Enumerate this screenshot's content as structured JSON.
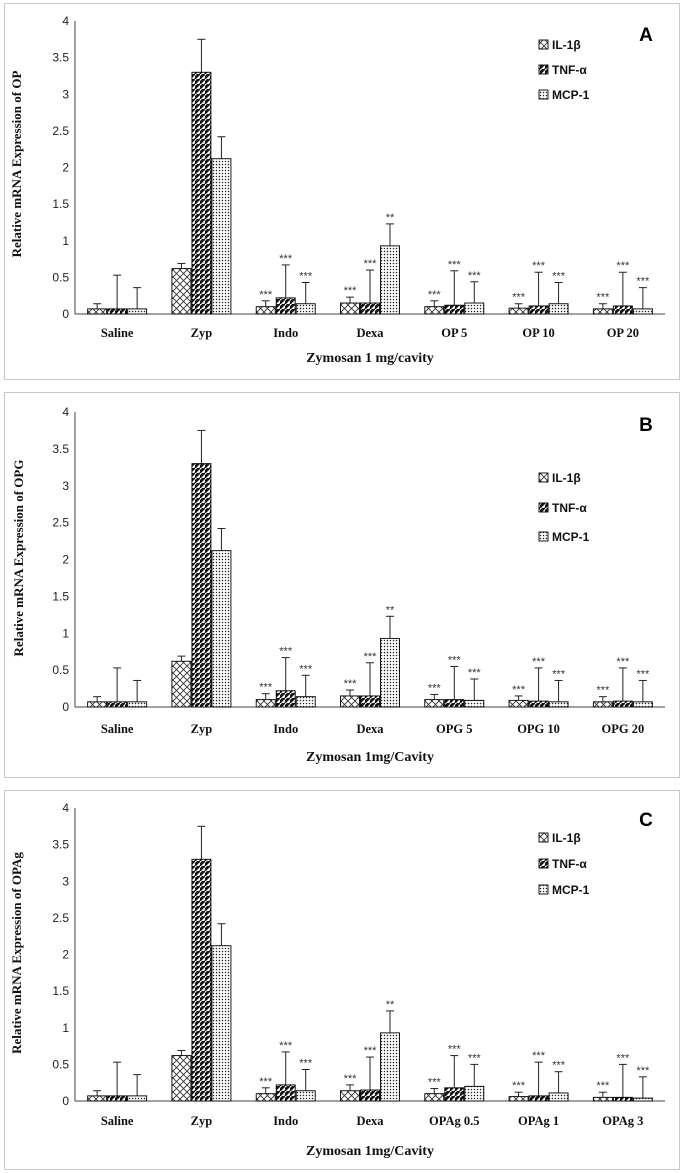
{
  "colors": {
    "bar_stroke": "#000000",
    "bar_fill": "#ffffff",
    "axis": "#444444",
    "error": "#222222"
  },
  "legend_patterns": [
    "crosshatch",
    "diagonal",
    "dots"
  ],
  "chart_data": [
    {
      "type": "bar",
      "panel_label": "A",
      "ylabel": "Relative mRNA Expression of OP",
      "xlabel": "Zymosan 1 mg/cavity",
      "ylim": [
        0,
        4
      ],
      "yticks": [
        "0",
        "0.5",
        "1",
        "1.5",
        "2",
        "2.5",
        "3",
        "3.5",
        "4"
      ],
      "categories": [
        "Saline",
        "Zyp",
        "Indo",
        "Dexa",
        "OP 5",
        "OP 10",
        "OP 20"
      ],
      "legend_position": "top-right",
      "series": [
        {
          "name": "IL-1β",
          "values": [
            0.07,
            0.62,
            0.1,
            0.15,
            0.1,
            0.08,
            0.07
          ],
          "errors": [
            0.07,
            0.07,
            0.08,
            0.08,
            0.08,
            0.06,
            0.07
          ],
          "annotations": [
            "",
            "",
            "***",
            "***",
            "***",
            "***",
            "***"
          ]
        },
        {
          "name": "TNF-α",
          "values": [
            0.07,
            3.3,
            0.22,
            0.15,
            0.12,
            0.11,
            0.11
          ],
          "errors": [
            0.46,
            0.45,
            0.45,
            0.45,
            0.47,
            0.46,
            0.46
          ],
          "annotations": [
            "",
            "",
            "***",
            "***",
            "***",
            "***",
            "***"
          ]
        },
        {
          "name": "MCP-1",
          "values": [
            0.07,
            2.12,
            0.14,
            0.93,
            0.15,
            0.14,
            0.07
          ],
          "errors": [
            0.29,
            0.3,
            0.29,
            0.3,
            0.29,
            0.29,
            0.29
          ],
          "annotations": [
            "",
            "",
            "***",
            "**",
            "***",
            "***",
            "***"
          ]
        }
      ]
    },
    {
      "type": "bar",
      "panel_label": "B",
      "ylabel": "Relative mRNA Expression of OPG",
      "xlabel": "Zymosan 1mg/Cavity",
      "ylim": [
        0,
        4
      ],
      "yticks": [
        "0",
        "0.5",
        "1",
        "1.5",
        "2",
        "2.5",
        "3",
        "3.5",
        "4"
      ],
      "categories": [
        "Saline",
        "Zyp",
        "Indo",
        "Dexa",
        "OPG 5",
        "OPG 10",
        "OPG 20"
      ],
      "legend_position": "top-right",
      "series": [
        {
          "name": "IL-1β",
          "values": [
            0.07,
            0.62,
            0.1,
            0.15,
            0.1,
            0.09,
            0.07
          ],
          "errors": [
            0.07,
            0.07,
            0.08,
            0.08,
            0.07,
            0.06,
            0.07
          ],
          "annotations": [
            "",
            "",
            "***",
            "***",
            "***",
            "***",
            "***"
          ]
        },
        {
          "name": "TNF-α",
          "values": [
            0.07,
            3.3,
            0.22,
            0.15,
            0.1,
            0.08,
            0.08
          ],
          "errors": [
            0.46,
            0.45,
            0.45,
            0.45,
            0.45,
            0.45,
            0.45
          ],
          "annotations": [
            "",
            "",
            "***",
            "***",
            "***",
            "***",
            "***"
          ]
        },
        {
          "name": "MCP-1",
          "values": [
            0.07,
            2.12,
            0.14,
            0.93,
            0.09,
            0.07,
            0.07
          ],
          "errors": [
            0.29,
            0.3,
            0.29,
            0.3,
            0.29,
            0.29,
            0.29
          ],
          "annotations": [
            "",
            "",
            "***",
            "**",
            "***",
            "***",
            "***"
          ]
        }
      ]
    },
    {
      "type": "bar",
      "panel_label": "C",
      "ylabel": "Relative mRNA Expression of OPAg",
      "xlabel": "Zymosan 1mg/Cavity",
      "ylim": [
        0,
        4
      ],
      "yticks": [
        "0",
        "0.5",
        "1",
        "1.5",
        "2",
        "2.5",
        "3",
        "3.5",
        "4"
      ],
      "categories": [
        "Saline",
        "Zyp",
        "Indo",
        "Dexa",
        "OPAg 0.5",
        "OPAg 1",
        "OPAg 3"
      ],
      "legend_position": "top-right",
      "series": [
        {
          "name": "IL-1β",
          "values": [
            0.07,
            0.62,
            0.1,
            0.14,
            0.1,
            0.06,
            0.05
          ],
          "errors": [
            0.07,
            0.07,
            0.08,
            0.08,
            0.07,
            0.06,
            0.07
          ],
          "annotations": [
            "",
            "",
            "***",
            "***",
            "***",
            "***",
            "***"
          ]
        },
        {
          "name": "TNF-α",
          "values": [
            0.07,
            3.3,
            0.22,
            0.15,
            0.18,
            0.07,
            0.05
          ],
          "errors": [
            0.46,
            0.45,
            0.45,
            0.45,
            0.44,
            0.46,
            0.45
          ],
          "annotations": [
            "",
            "",
            "***",
            "***",
            "***",
            "***",
            "***"
          ]
        },
        {
          "name": "MCP-1",
          "values": [
            0.07,
            2.12,
            0.14,
            0.93,
            0.2,
            0.11,
            0.04
          ],
          "errors": [
            0.29,
            0.3,
            0.29,
            0.3,
            0.3,
            0.29,
            0.29
          ],
          "annotations": [
            "",
            "",
            "***",
            "**",
            "***",
            "***",
            "***"
          ]
        }
      ]
    }
  ]
}
